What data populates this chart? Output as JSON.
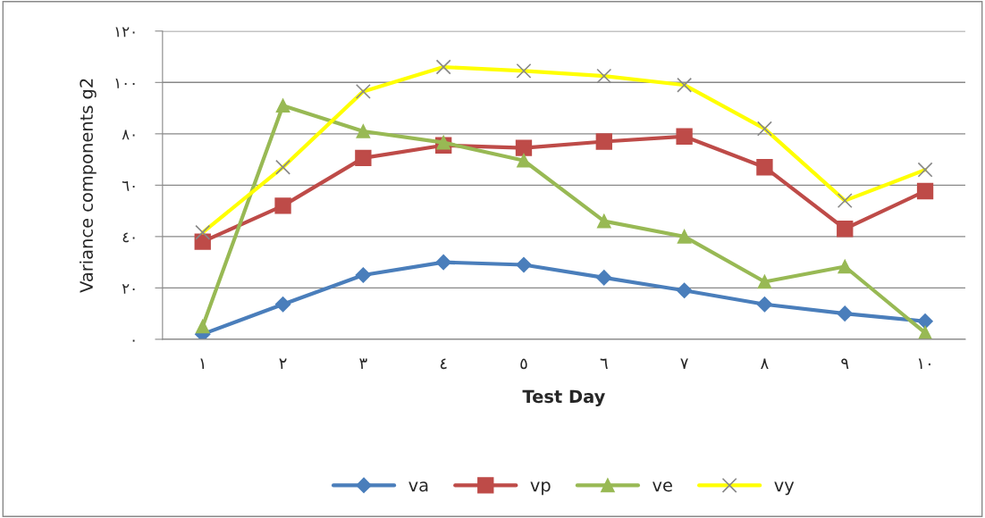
{
  "chart_data": {
    "type": "line",
    "xlabel": "Test Day",
    "ylabel": "Variance components g2",
    "categories": [
      "١",
      "٢",
      "٣",
      "٤",
      "٥",
      "٦",
      "٧",
      "٨",
      "٩",
      "١٠"
    ],
    "series": [
      {
        "name": "va",
        "color": "#4a7ebb",
        "marker": "diamond",
        "values": [
          2,
          13.6,
          25,
          30,
          29,
          24,
          19,
          13.6,
          10,
          7
        ]
      },
      {
        "name": "vp",
        "color": "#be4b48",
        "marker": "square",
        "values": [
          38,
          52,
          70.6,
          75.5,
          74.5,
          77,
          79,
          67,
          43,
          57.7
        ]
      },
      {
        "name": "ve",
        "color": "#98b954",
        "marker": "triangle",
        "values": [
          5,
          91,
          81,
          76.6,
          69.6,
          46,
          40,
          22.4,
          28.3,
          2.5
        ]
      },
      {
        "name": "vy",
        "color": "#ffff00",
        "marker": "cross",
        "values": [
          41.6,
          67,
          96.5,
          106,
          104.5,
          102.5,
          99,
          82,
          54,
          66
        ]
      }
    ],
    "ylim": [
      0,
      120
    ],
    "yticks": [
      {
        "value": 0,
        "label": "٠"
      },
      {
        "value": 20,
        "label": "٢٠"
      },
      {
        "value": 40,
        "label": "٤٠"
      },
      {
        "value": 60,
        "label": "٦٠"
      },
      {
        "value": 80,
        "label": "٨٠"
      },
      {
        "value": 100,
        "label": "١٠٠"
      },
      {
        "value": 120,
        "label": "١٢٠"
      }
    ],
    "grid": "y",
    "legend": "bottom"
  }
}
